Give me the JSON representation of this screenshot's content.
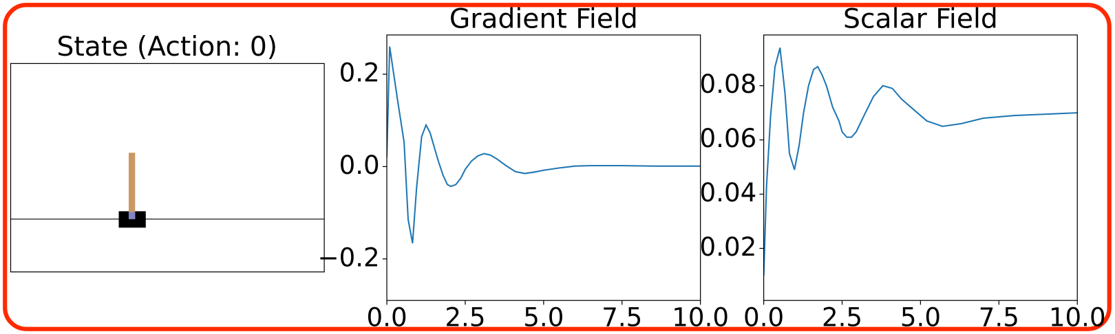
{
  "state_panel": {
    "title": "State (Action: 0)"
  },
  "chart_data": [
    {
      "type": "line",
      "title": "Gradient Field",
      "color": "#1f77b4",
      "x": [
        0,
        0.09,
        0.22,
        0.36,
        0.55,
        0.68,
        0.82,
        0.95,
        1.11,
        1.25,
        1.38,
        1.52,
        1.66,
        1.8,
        1.93,
        2.04,
        2.2,
        2.36,
        2.5,
        2.7,
        2.9,
        3.1,
        3.3,
        3.5,
        3.8,
        4.1,
        4.4,
        4.7,
        5.0,
        5.5,
        6.0,
        6.5,
        7.5,
        8.5,
        10
      ],
      "values": [
        0.02,
        0.26,
        0.2,
        0.136,
        0.053,
        -0.115,
        -0.166,
        -0.045,
        0.065,
        0.09,
        0.073,
        0.04,
        0.008,
        -0.02,
        -0.039,
        -0.043,
        -0.039,
        -0.025,
        -0.006,
        0.012,
        0.023,
        0.028,
        0.025,
        0.017,
        0.002,
        -0.011,
        -0.015,
        -0.012,
        -0.008,
        -0.003,
        0.001,
        0.002,
        0.002,
        0.001,
        0.001
      ],
      "xlim": [
        0,
        10
      ],
      "ylim": [
        -0.29,
        0.285
      ],
      "xticks": [
        {
          "value": 0,
          "label": "0.0"
        },
        2.5,
        {
          "value": 5,
          "label": "5.0"
        },
        7.5,
        {
          "value": 10,
          "label": "10.0"
        }
      ],
      "yticks": [
        {
          "value": -0.2,
          "label": "−0.2"
        },
        {
          "value": 0,
          "label": "0.0"
        },
        0.2
      ]
    },
    {
      "type": "line",
      "title": "Scalar Field",
      "color": "#1f77b4",
      "x": [
        0,
        0.09,
        0.22,
        0.36,
        0.52,
        0.68,
        0.82,
        0.98,
        1.13,
        1.27,
        1.43,
        1.59,
        1.72,
        1.86,
        2.0,
        2.2,
        2.4,
        2.5,
        2.65,
        2.8,
        2.95,
        3.2,
        3.5,
        3.8,
        4.1,
        4.4,
        4.8,
        5.2,
        5.7,
        6.3,
        7.0,
        8.0,
        9.0,
        10
      ],
      "values": [
        0.01,
        0.043,
        0.069,
        0.087,
        0.094,
        0.077,
        0.055,
        0.049,
        0.058,
        0.07,
        0.08,
        0.086,
        0.087,
        0.084,
        0.08,
        0.072,
        0.067,
        0.063,
        0.061,
        0.061,
        0.063,
        0.069,
        0.076,
        0.08,
        0.079,
        0.075,
        0.071,
        0.067,
        0.065,
        0.066,
        0.068,
        0.069,
        0.0695,
        0.07
      ],
      "xlim": [
        0,
        10
      ],
      "ylim": [
        0.0008,
        0.0987
      ],
      "xticks": [
        {
          "value": 0,
          "label": "0.0"
        },
        2.5,
        {
          "value": 5,
          "label": "5.0"
        },
        7.5,
        {
          "value": 10,
          "label": "10.0"
        }
      ],
      "yticks": [
        0.02,
        0.04,
        0.06,
        0.08
      ]
    }
  ]
}
